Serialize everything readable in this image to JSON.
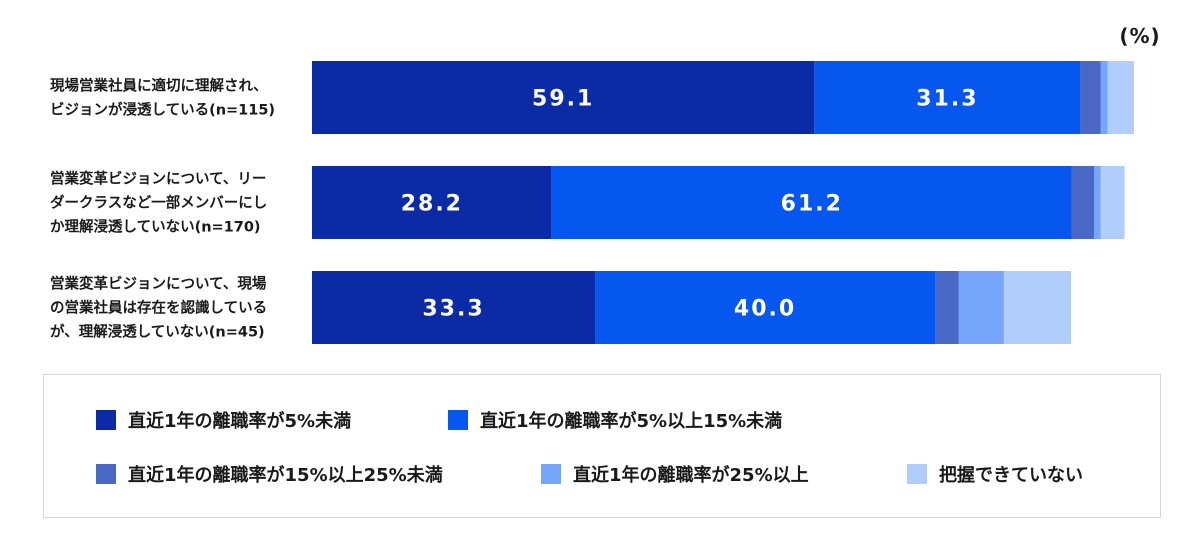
{
  "chart_data": {
    "type": "bar",
    "orientation": "horizontal",
    "stacked": true,
    "unit_label": "(%)",
    "categories": [
      [
        "現場営業社員に適切に理解され、",
        "ビジョンが浸透している(n=115)"
      ],
      [
        "営業変革ビジョンについて、リー",
        "ダークラスなど一部メンバーにし",
        "か理解浸透していない(n=170)"
      ],
      [
        "営業変革ビジョンについて、現場",
        "の営業社員は存在を認識している",
        "が、理解浸透していない(n=45)"
      ]
    ],
    "series": [
      {
        "name": "直近1年の離職率が5%未満",
        "color": "#0a2aa6",
        "values": [
          59.1,
          28.2,
          33.3
        ],
        "labels": [
          "59.1",
          "28.2",
          "33.3"
        ]
      },
      {
        "name": "直近1年の離職率が5%以上15%未満",
        "color": "#0656f0",
        "values": [
          31.3,
          61.2,
          40.0
        ],
        "labels": [
          "31.3",
          "61.2",
          "40.0"
        ]
      },
      {
        "name": "直近1年の離職率が15%以上25%未満",
        "color": "#4a68c6",
        "values": [
          2.4,
          2.6,
          2.8
        ],
        "labels": [
          "",
          "",
          ""
        ]
      },
      {
        "name": "直近1年の離職率が25%以上",
        "color": "#75a6fb",
        "values": [
          0.8,
          0.8,
          5.3
        ],
        "labels": [
          "",
          "",
          ""
        ]
      },
      {
        "name": "把握できていない",
        "color": "#b1cdfb",
        "values": [
          3.1,
          2.8,
          7.9
        ],
        "labels": [
          "",
          "",
          ""
        ]
      }
    ],
    "xlim": [
      0,
      100
    ],
    "legend_position": "bottom"
  }
}
